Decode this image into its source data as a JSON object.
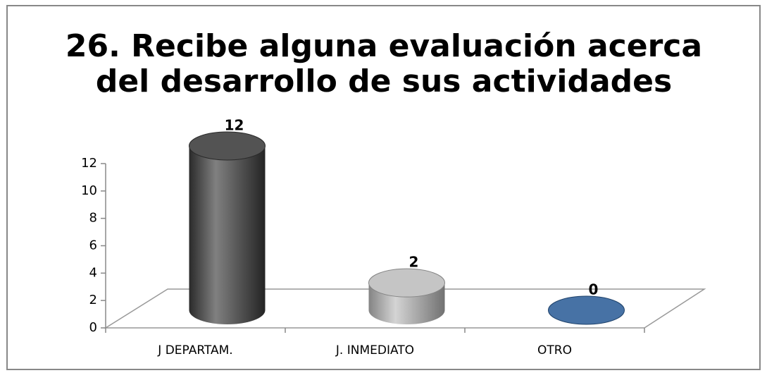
{
  "chart_data": {
    "type": "bar3d",
    "title": [
      "26. Recibe alguna evaluación acerca",
      "del desarrollo de sus actividades"
    ],
    "categories": [
      "J DEPARTAM.",
      "J. INMEDIATO",
      "OTRO"
    ],
    "values": [
      12,
      2,
      0
    ],
    "colors": [
      "#3c3c3c",
      "#bdbdbd",
      "#2e5f99"
    ],
    "ylim": [
      0,
      12
    ],
    "yticks": [
      0,
      2,
      4,
      6,
      8,
      10,
      12
    ],
    "grid": false
  }
}
